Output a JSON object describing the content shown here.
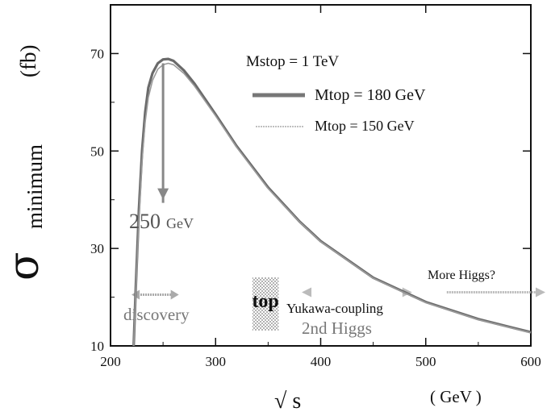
{
  "chart_data": {
    "type": "line",
    "xlim": [
      200,
      600
    ],
    "ylim": [
      10,
      80
    ],
    "xticks": [
      200,
      300,
      400,
      500,
      600
    ],
    "yticks": [
      10,
      30,
      50,
      70
    ],
    "xlabel": "√ s",
    "xunit": "( GeV )",
    "ylabel_symbol": "σ",
    "ylabel_sub": "minimum",
    "yunit": "(fb)",
    "legend_header": "Mstop = 1 TeV",
    "series": [
      {
        "name": "Mtop = 180 GeV",
        "color": "#777777",
        "x": [
          222,
          224,
          227,
          230,
          233,
          236,
          240,
          245,
          250,
          255,
          260,
          270,
          280,
          300,
          320,
          350,
          380,
          400,
          450,
          500,
          550,
          600
        ],
        "y": [
          10,
          22,
          38,
          50,
          58,
          63,
          66,
          68,
          68.8,
          68.9,
          68.5,
          66.5,
          63.8,
          57.5,
          51,
          42.5,
          35.5,
          31.5,
          24,
          19,
          15.5,
          12.8
        ]
      },
      {
        "name": "Mtop = 150 GeV",
        "color": "#999999",
        "x": [
          222,
          224,
          227,
          230,
          233,
          236,
          240,
          245,
          250,
          255,
          260,
          270,
          280,
          300,
          320,
          350,
          380,
          400,
          450,
          500,
          550,
          600
        ],
        "y": [
          10,
          21,
          36,
          48,
          56,
          61,
          64.5,
          66.8,
          67.7,
          68,
          67.7,
          65.9,
          63.3,
          57.2,
          50.8,
          42.3,
          35.4,
          31.4,
          23.9,
          18.9,
          15.4,
          12.7
        ]
      }
    ],
    "annotations": {
      "arrow": {
        "x": 250,
        "y_from": 68,
        "y_to": 41,
        "label": "250",
        "unit": "GeV"
      },
      "regions": [
        {
          "label": "discovery",
          "x0": 235,
          "x1": 265,
          "y": 20.5
        },
        {
          "label": "top",
          "x0": 335,
          "x1": 360,
          "y": 20.5
        },
        {
          "label": "Yukawa-coupling",
          "sub": "2nd Higgs",
          "x0": 390,
          "x1": 490,
          "y": 21
        },
        {
          "label": "More Higgs?",
          "x0": 520,
          "x1": 600,
          "y": 21
        }
      ]
    }
  }
}
